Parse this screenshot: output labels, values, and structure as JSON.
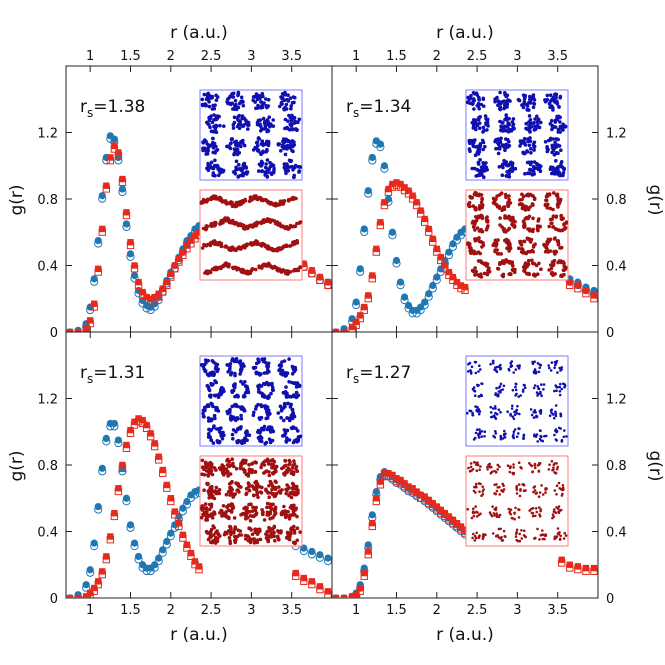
{
  "figure": {
    "top_axis_label": "r (a.u.)",
    "bottom_axis_label": "r (a.u.)",
    "left_axis_label": "g(r)",
    "right_axis_label": "g(r)",
    "x_ticks": [
      "1",
      "1.5",
      "2",
      "2.5",
      "3",
      "3.5"
    ],
    "y_ticks": [
      "0",
      "0.4",
      "0.8",
      "1.2"
    ],
    "colors": {
      "blue": "#1f77b4",
      "red": "#e8281b",
      "inset_blue_border": "#7a7aff",
      "inset_red_border": "#ff7a7a",
      "inset_blue_dots": "#1010b0",
      "inset_red_dots": "#a01010"
    }
  },
  "chart_data": [
    {
      "type": "scatter",
      "panel": "top-left",
      "label": "rs=1.38",
      "label_base": "r",
      "label_sub": "s",
      "label_value": "=1.38",
      "xlim": [
        0.7,
        4.0
      ],
      "ylim": [
        0,
        1.6
      ],
      "series": [
        {
          "name": "blue",
          "x": [
            0.75,
            0.85,
            0.95,
            1.0,
            1.05,
            1.1,
            1.15,
            1.2,
            1.25,
            1.3,
            1.35,
            1.4,
            1.45,
            1.5,
            1.55,
            1.6,
            1.65,
            1.7,
            1.75,
            1.8,
            1.85,
            1.9,
            1.95,
            2.0,
            2.05,
            2.1,
            2.15,
            2.2,
            2.25,
            2.3,
            2.35,
            3.55,
            3.65,
            3.75,
            3.85,
            3.95
          ],
          "y": [
            0.0,
            0.01,
            0.05,
            0.15,
            0.32,
            0.55,
            0.82,
            1.05,
            1.18,
            1.16,
            1.05,
            0.86,
            0.65,
            0.47,
            0.34,
            0.25,
            0.19,
            0.16,
            0.15,
            0.17,
            0.21,
            0.26,
            0.31,
            0.36,
            0.4,
            0.45,
            0.5,
            0.55,
            0.58,
            0.62,
            0.64,
            0.45,
            0.41,
            0.37,
            0.33,
            0.3
          ]
        },
        {
          "name": "red",
          "x": [
            0.75,
            0.85,
            0.95,
            1.0,
            1.05,
            1.1,
            1.15,
            1.2,
            1.25,
            1.3,
            1.35,
            1.4,
            1.45,
            1.5,
            1.55,
            1.6,
            1.65,
            1.7,
            1.75,
            1.8,
            1.85,
            1.9,
            1.95,
            2.0,
            2.05,
            2.1,
            2.15,
            2.2,
            2.25,
            2.3,
            2.35,
            3.55,
            3.65,
            3.75,
            3.85,
            3.95
          ],
          "y": [
            0.0,
            0.0,
            0.02,
            0.07,
            0.17,
            0.38,
            0.62,
            0.88,
            1.05,
            1.12,
            1.08,
            0.92,
            0.72,
            0.54,
            0.4,
            0.3,
            0.24,
            0.21,
            0.2,
            0.21,
            0.23,
            0.26,
            0.3,
            0.35,
            0.4,
            0.44,
            0.48,
            0.52,
            0.55,
            0.58,
            0.6,
            0.45,
            0.41,
            0.37,
            0.33,
            0.3
          ]
        }
      ],
      "insets": [
        {
          "color": "blue",
          "clusters": 16,
          "style": "blobs"
        },
        {
          "color": "red",
          "clusters": 20,
          "style": "chains"
        }
      ]
    },
    {
      "type": "scatter",
      "panel": "top-right",
      "label": "rs=1.34",
      "label_base": "r",
      "label_sub": "s",
      "label_value": "=1.34",
      "xlim": [
        0.7,
        4.0
      ],
      "ylim": [
        0,
        1.6
      ],
      "series": [
        {
          "name": "blue",
          "x": [
            0.75,
            0.85,
            0.95,
            1.0,
            1.05,
            1.1,
            1.15,
            1.2,
            1.25,
            1.3,
            1.35,
            1.4,
            1.45,
            1.5,
            1.55,
            1.6,
            1.65,
            1.7,
            1.75,
            1.8,
            1.85,
            1.9,
            1.95,
            2.0,
            2.05,
            2.1,
            2.15,
            2.2,
            2.25,
            2.3,
            2.35,
            3.65,
            3.75,
            3.85,
            3.95
          ],
          "y": [
            0.0,
            0.02,
            0.08,
            0.18,
            0.38,
            0.62,
            0.85,
            1.05,
            1.15,
            1.13,
            1.0,
            0.8,
            0.6,
            0.43,
            0.3,
            0.21,
            0.16,
            0.13,
            0.13,
            0.15,
            0.18,
            0.23,
            0.28,
            0.33,
            0.38,
            0.43,
            0.48,
            0.53,
            0.57,
            0.6,
            0.62,
            0.32,
            0.3,
            0.27,
            0.25
          ]
        },
        {
          "name": "red",
          "x": [
            0.75,
            0.85,
            0.95,
            1.0,
            1.05,
            1.1,
            1.15,
            1.2,
            1.25,
            1.3,
            1.35,
            1.4,
            1.45,
            1.5,
            1.55,
            1.6,
            1.65,
            1.7,
            1.75,
            1.8,
            1.85,
            1.9,
            1.95,
            2.0,
            2.05,
            2.1,
            2.15,
            2.2,
            2.25,
            2.3,
            2.35,
            3.65,
            3.75,
            3.85,
            3.95
          ],
          "y": [
            0.0,
            0.0,
            0.03,
            0.06,
            0.1,
            0.15,
            0.22,
            0.34,
            0.5,
            0.66,
            0.78,
            0.86,
            0.89,
            0.9,
            0.89,
            0.87,
            0.85,
            0.82,
            0.78,
            0.73,
            0.68,
            0.62,
            0.56,
            0.5,
            0.45,
            0.4,
            0.36,
            0.33,
            0.3,
            0.28,
            0.27,
            0.3,
            0.28,
            0.25,
            0.22
          ]
        }
      ],
      "insets": [
        {
          "color": "blue",
          "clusters": 16,
          "style": "blobs"
        },
        {
          "color": "red",
          "clusters": 12,
          "style": "rings"
        }
      ]
    },
    {
      "type": "scatter",
      "panel": "bottom-left",
      "label": "rs=1.31",
      "label_base": "r",
      "label_sub": "s",
      "label_value": "=1.31",
      "xlim": [
        0.7,
        4.0
      ],
      "ylim": [
        0,
        1.6
      ],
      "series": [
        {
          "name": "blue",
          "x": [
            0.75,
            0.85,
            0.95,
            1.0,
            1.05,
            1.1,
            1.15,
            1.2,
            1.25,
            1.3,
            1.35,
            1.4,
            1.45,
            1.5,
            1.55,
            1.6,
            1.65,
            1.7,
            1.75,
            1.8,
            1.85,
            1.9,
            1.95,
            2.0,
            2.05,
            2.1,
            2.15,
            2.2,
            2.25,
            2.3,
            2.35,
            3.55,
            3.65,
            3.75,
            3.85,
            3.95
          ],
          "y": [
            0.0,
            0.02,
            0.08,
            0.17,
            0.33,
            0.55,
            0.78,
            0.96,
            1.05,
            1.05,
            0.95,
            0.78,
            0.6,
            0.44,
            0.33,
            0.25,
            0.2,
            0.18,
            0.18,
            0.2,
            0.24,
            0.29,
            0.34,
            0.39,
            0.44,
            0.49,
            0.54,
            0.58,
            0.62,
            0.64,
            0.65,
            0.33,
            0.3,
            0.28,
            0.26,
            0.24
          ]
        },
        {
          "name": "red",
          "x": [
            0.75,
            0.85,
            0.95,
            1.0,
            1.05,
            1.1,
            1.15,
            1.2,
            1.25,
            1.3,
            1.35,
            1.4,
            1.45,
            1.5,
            1.55,
            1.6,
            1.65,
            1.7,
            1.75,
            1.8,
            1.85,
            1.9,
            1.95,
            2.0,
            2.05,
            2.1,
            2.15,
            2.2,
            2.25,
            2.3,
            2.35,
            3.55,
            3.65,
            3.75,
            3.85,
            3.95
          ],
          "y": [
            0.0,
            0.0,
            0.01,
            0.03,
            0.06,
            0.1,
            0.16,
            0.25,
            0.37,
            0.51,
            0.66,
            0.8,
            0.92,
            1.01,
            1.06,
            1.08,
            1.07,
            1.04,
            0.99,
            0.93,
            0.85,
            0.77,
            0.68,
            0.6,
            0.52,
            0.45,
            0.38,
            0.32,
            0.27,
            0.22,
            0.19,
            0.15,
            0.12,
            0.1,
            0.07,
            0.04
          ]
        }
      ],
      "insets": [
        {
          "color": "blue",
          "clusters": 16,
          "style": "rings"
        },
        {
          "color": "red",
          "clusters": 20,
          "style": "blobs"
        }
      ]
    },
    {
      "type": "scatter",
      "panel": "bottom-right",
      "label": "rs=1.27",
      "label_base": "r",
      "label_sub": "s",
      "label_value": "=1.27",
      "xlim": [
        0.7,
        4.0
      ],
      "ylim": [
        0,
        1.6
      ],
      "series": [
        {
          "name": "blue",
          "x": [
            0.75,
            0.85,
            0.95,
            1.0,
            1.05,
            1.1,
            1.15,
            1.2,
            1.25,
            1.3,
            1.35,
            1.4,
            1.45,
            1.5,
            1.55,
            1.6,
            1.65,
            1.7,
            1.75,
            1.8,
            1.85,
            1.9,
            1.95,
            2.0,
            2.05,
            2.1,
            2.15,
            2.2,
            2.25,
            2.3,
            2.35
          ],
          "y": [
            0.0,
            0.0,
            0.01,
            0.03,
            0.08,
            0.18,
            0.32,
            0.5,
            0.64,
            0.73,
            0.76,
            0.75,
            0.73,
            0.71,
            0.7,
            0.68,
            0.66,
            0.65,
            0.63,
            0.62,
            0.6,
            0.58,
            0.56,
            0.54,
            0.52,
            0.5,
            0.48,
            0.46,
            0.44,
            0.42,
            0.4
          ]
        },
        {
          "name": "red",
          "x": [
            0.75,
            0.85,
            0.95,
            1.0,
            1.05,
            1.1,
            1.15,
            1.2,
            1.25,
            1.3,
            1.35,
            1.4,
            1.45,
            1.5,
            1.55,
            1.6,
            1.65,
            1.7,
            1.75,
            1.8,
            1.85,
            1.9,
            1.95,
            2.0,
            2.05,
            2.1,
            2.15,
            2.2,
            2.25,
            2.3,
            2.35,
            3.55,
            3.65,
            3.75,
            3.85,
            3.95
          ],
          "y": [
            0.0,
            0.0,
            0.01,
            0.02,
            0.06,
            0.15,
            0.28,
            0.45,
            0.6,
            0.7,
            0.75,
            0.75,
            0.74,
            0.72,
            0.71,
            0.69,
            0.67,
            0.66,
            0.64,
            0.62,
            0.61,
            0.59,
            0.57,
            0.55,
            0.53,
            0.51,
            0.49,
            0.47,
            0.45,
            0.43,
            0.41,
            0.23,
            0.2,
            0.19,
            0.18,
            0.18
          ]
        }
      ],
      "insets": [
        {
          "color": "blue",
          "clusters": 20,
          "style": "sparse"
        },
        {
          "color": "red",
          "clusters": 20,
          "style": "sparse"
        }
      ]
    }
  ]
}
